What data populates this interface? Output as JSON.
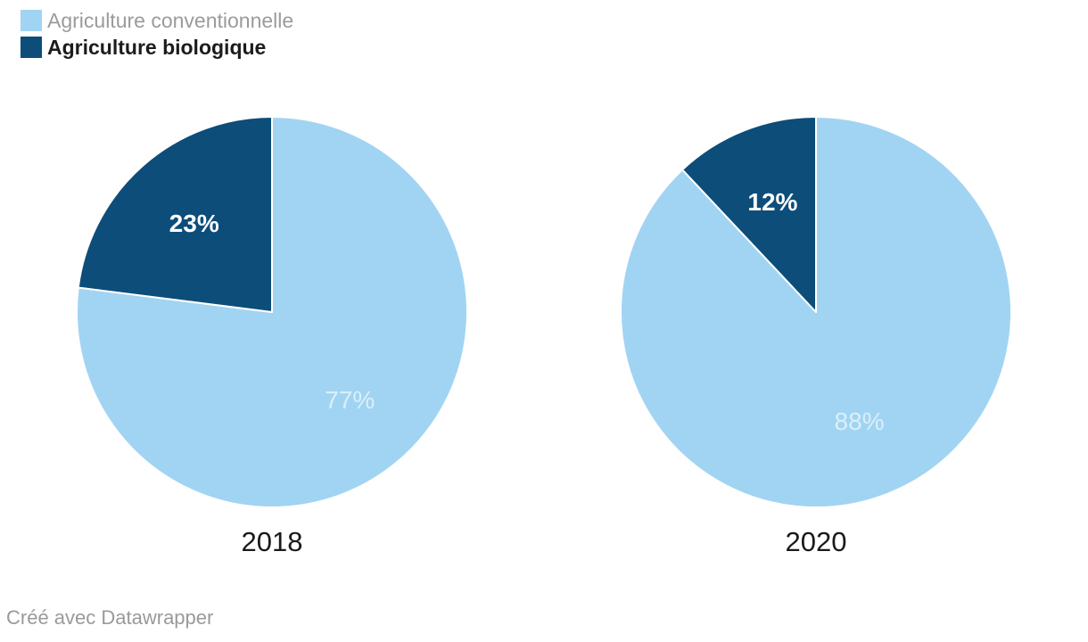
{
  "legend": {
    "items": [
      {
        "label": "Agriculture conventionnelle"
      },
      {
        "label": "Agriculture biologique"
      }
    ]
  },
  "chart_data": {
    "type": "pie",
    "legend_position": "top-left",
    "start_angle": "12-o-clock",
    "direction": "clockwise",
    "series": [
      "Agriculture conventionnelle",
      "Agriculture biologique"
    ],
    "series_colors": [
      "#a1d4f2",
      "#0c4d7a"
    ],
    "pies": [
      {
        "title": "2018",
        "slices": [
          {
            "label": "Agriculture conventionnelle",
            "value": 77,
            "display": "77%"
          },
          {
            "label": "Agriculture biologique",
            "value": 23,
            "display": "23%"
          }
        ]
      },
      {
        "title": "2020",
        "slices": [
          {
            "label": "Agriculture conventionnelle",
            "value": 88,
            "display": "88%"
          },
          {
            "label": "Agriculture biologique",
            "value": 12,
            "display": "12%"
          }
        ]
      }
    ]
  },
  "footer": {
    "credit": "Créé avec Datawrapper"
  },
  "colors": {
    "conventionnelle": "#a1d4f2",
    "biologique": "#0c4d7a",
    "label_on_dark": "#ffffff",
    "label_on_light_opacity": "rgba(255,255,255,0.62)",
    "legend_muted_text": "#9b9b9b",
    "legend_bold_text": "#1c1c1c",
    "caption_text": "#1a1a1a",
    "credit_text": "#9a9a9a",
    "slice_separator": "#ffffff",
    "background": "#ffffff"
  }
}
